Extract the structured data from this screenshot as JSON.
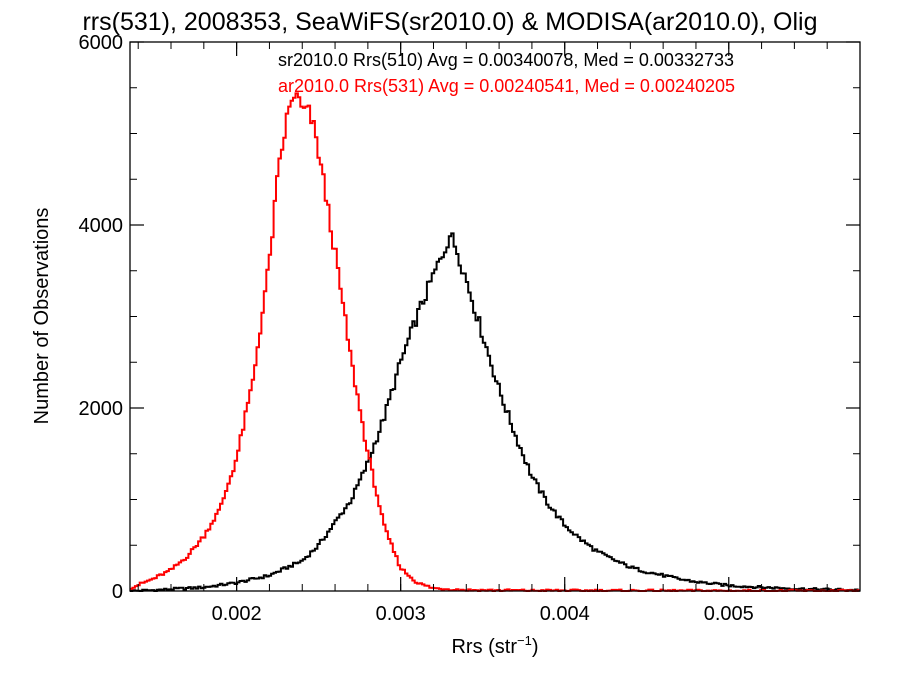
{
  "chart_data": {
    "type": "histogram",
    "title": "rrs(531), 2008353, SeaWiFS(sr2010.0) & MODISA(ar2010.0), Olig",
    "xlabel_main": "Rrs (str",
    "xlabel_sup": "−1",
    "xlabel_close": ")",
    "ylabel": "Number of Observations",
    "xlim": [
      0.00135,
      0.0058
    ],
    "ylim": [
      0,
      6000
    ],
    "x_ticks": [
      0.002,
      0.003,
      0.004,
      0.005
    ],
    "x_tick_labels": [
      "0.002",
      "0.003",
      "0.004",
      "0.005"
    ],
    "y_ticks": [
      0,
      2000,
      4000,
      6000
    ],
    "y_tick_labels": [
      "0",
      "2000",
      "4000",
      "6000"
    ],
    "stats": [
      {
        "text": "sr2010.0 Rrs(510) Avg = 0.00340078, Med = 0.00332733",
        "color": "#000000"
      },
      {
        "text": "ar2010.0 Rrs(531) Avg = 0.00240541, Med = 0.00240205",
        "color": "#ff0000"
      }
    ],
    "series": [
      {
        "name": "sr2010.0 Rrs(510)",
        "color": "#000000",
        "points": [
          [
            0.00135,
            0
          ],
          [
            0.0015,
            10
          ],
          [
            0.0018,
            40
          ],
          [
            0.002,
            90
          ],
          [
            0.0022,
            170
          ],
          [
            0.0024,
            330
          ],
          [
            0.0025,
            500
          ],
          [
            0.0026,
            750
          ],
          [
            0.0027,
            1000
          ],
          [
            0.0028,
            1400
          ],
          [
            0.0029,
            1900
          ],
          [
            0.003,
            2500
          ],
          [
            0.0031,
            3000
          ],
          [
            0.0032,
            3450
          ],
          [
            0.00325,
            3650
          ],
          [
            0.0033,
            3900
          ],
          [
            0.00335,
            3700
          ],
          [
            0.0034,
            3400
          ],
          [
            0.0035,
            2800
          ],
          [
            0.0036,
            2200
          ],
          [
            0.0037,
            1700
          ],
          [
            0.0038,
            1250
          ],
          [
            0.0039,
            950
          ],
          [
            0.004,
            720
          ],
          [
            0.0041,
            560
          ],
          [
            0.0042,
            430
          ],
          [
            0.0043,
            340
          ],
          [
            0.0044,
            260
          ],
          [
            0.0045,
            210
          ],
          [
            0.0046,
            170
          ],
          [
            0.0047,
            130
          ],
          [
            0.0048,
            100
          ],
          [
            0.005,
            60
          ],
          [
            0.0052,
            40
          ],
          [
            0.0055,
            20
          ],
          [
            0.0058,
            10
          ]
        ]
      },
      {
        "name": "ar2010.0 Rrs(531)",
        "color": "#ff0000",
        "points": [
          [
            0.00135,
            30
          ],
          [
            0.0015,
            140
          ],
          [
            0.0016,
            230
          ],
          [
            0.0017,
            380
          ],
          [
            0.0018,
            600
          ],
          [
            0.0019,
            900
          ],
          [
            0.002,
            1450
          ],
          [
            0.0021,
            2300
          ],
          [
            0.0022,
            3600
          ],
          [
            0.00225,
            4500
          ],
          [
            0.0023,
            5100
          ],
          [
            0.00235,
            5450
          ],
          [
            0.0024,
            5250
          ],
          [
            0.00245,
            5200
          ],
          [
            0.0025,
            4800
          ],
          [
            0.0026,
            3700
          ],
          [
            0.0027,
            2500
          ],
          [
            0.0028,
            1500
          ],
          [
            0.0029,
            700
          ],
          [
            0.003,
            250
          ],
          [
            0.0031,
            90
          ],
          [
            0.0032,
            30
          ],
          [
            0.0034,
            10
          ],
          [
            0.0038,
            5
          ],
          [
            0.0058,
            0
          ]
        ]
      }
    ]
  }
}
